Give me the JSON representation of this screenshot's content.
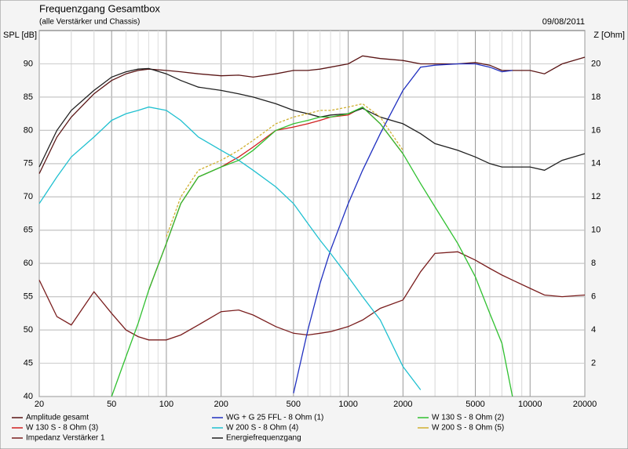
{
  "chart_data": {
    "type": "line",
    "title": "Frequenzgang Gesamtbox",
    "subtitle": "(alle Verstärker und Chassis)",
    "date": "09/08/2011",
    "y_label": "SPL [dB]",
    "y2_label": "Z [Ohm]",
    "log_x": true,
    "grid": true,
    "x": [
      20,
      25,
      30,
      40,
      50,
      60,
      70,
      80,
      100,
      120,
      150,
      200,
      250,
      300,
      400,
      500,
      600,
      700,
      800,
      1000,
      1200,
      1500,
      2000,
      2500,
      3000,
      4000,
      5000,
      6000,
      7000,
      8000,
      10000,
      12000,
      15000,
      20000
    ],
    "xlim": [
      20,
      20000
    ],
    "xticks": [
      20,
      50,
      100,
      200,
      500,
      1000,
      2000,
      5000,
      10000,
      20000
    ],
    "xminor": [
      30,
      40,
      60,
      70,
      80,
      90,
      300,
      400,
      600,
      700,
      800,
      900,
      3000,
      4000,
      6000,
      7000,
      8000,
      9000,
      30,
      40,
      300,
      400,
      3000,
      4000,
      6000,
      7000,
      8000,
      9000
    ],
    "ylim": [
      40,
      95
    ],
    "yticks": [
      40,
      45,
      50,
      55,
      60,
      65,
      70,
      75,
      80,
      85,
      90
    ],
    "y2lim": [
      0,
      22
    ],
    "y2ticks": [
      2,
      4,
      6,
      8,
      10,
      12,
      14,
      16,
      18,
      20
    ],
    "series": [
      {
        "name": "Amplitude gesamt",
        "color": "#5a1515",
        "values": [
          73.5,
          79,
          82,
          85.5,
          87.5,
          88.5,
          89,
          89.2,
          89,
          88.8,
          88.5,
          88.2,
          88.3,
          88,
          88.5,
          89,
          89,
          89.2,
          89.5,
          90,
          91.2,
          90.8,
          90.5,
          90,
          90,
          90,
          90.2,
          89.8,
          89,
          89,
          89,
          88.5,
          90,
          91
        ]
      },
      {
        "name": "W 130 S - 8 Ohm (3)",
        "color": "#d02020",
        "values": [
          null,
          null,
          null,
          null,
          null,
          null,
          null,
          56,
          63,
          69,
          73,
          74.5,
          76,
          77.5,
          80,
          80.5,
          81,
          81.5,
          82,
          82.3,
          83.5,
          81,
          76.5,
          null,
          null,
          null,
          null,
          null,
          null,
          null,
          null,
          null,
          null,
          null
        ]
      },
      {
        "name": "Impedanz Verstärker 1",
        "color": "#7a1e1e",
        "axis": "y2",
        "values": [
          7,
          4.8,
          4.3,
          6.3,
          5,
          4,
          3.6,
          3.4,
          3.4,
          3.7,
          4.3,
          5.1,
          5.2,
          4.9,
          4.2,
          3.8,
          3.7,
          3.8,
          3.9,
          4.2,
          4.6,
          5.3,
          5.8,
          7.5,
          8.6,
          8.7,
          8.2,
          7.7,
          7.3,
          7,
          6.5,
          6.1,
          6,
          6.1
        ]
      },
      {
        "name": "WG + G 25 FFL - 8 Ohm (1)",
        "color": "#2030c0",
        "values": [
          null,
          null,
          null,
          null,
          null,
          null,
          null,
          null,
          null,
          null,
          null,
          null,
          null,
          null,
          null,
          40.5,
          50,
          57,
          62,
          69,
          74,
          79.5,
          86,
          89.5,
          89.8,
          90,
          90,
          89.5,
          88.8,
          89,
          null,
          null,
          null,
          null
        ]
      },
      {
        "name": "W 200 S - 8 Ohm (4)",
        "color": "#20c0d0",
        "values": [
          69,
          73,
          76,
          79,
          81.5,
          82.5,
          83,
          83.5,
          83,
          81.5,
          79,
          77,
          75.5,
          74,
          71.5,
          69,
          66,
          63.5,
          61.5,
          58,
          55,
          51.5,
          44.5,
          41,
          null,
          null,
          null,
          null,
          null,
          null,
          null,
          null,
          null,
          null
        ]
      },
      {
        "name": "Energiefrequenzgang",
        "color": "#202020",
        "values": [
          74.5,
          80,
          83,
          86,
          88,
          88.8,
          89.2,
          89.3,
          88.5,
          87.5,
          86.5,
          86,
          85.5,
          85,
          84,
          83,
          82.5,
          82,
          82.3,
          82.5,
          83.3,
          82,
          81,
          79.5,
          78,
          77,
          76,
          75,
          74.5,
          74.5,
          74.5,
          74,
          75.5,
          76.5
        ]
      },
      {
        "name": "W 130 S - 8 Ohm (2)",
        "color": "#30c030",
        "values": [
          null,
          null,
          null,
          null,
          40,
          46,
          51,
          56,
          63,
          69,
          73,
          74.5,
          75.5,
          77,
          80,
          81,
          81.5,
          82,
          82,
          82.5,
          83.5,
          81,
          76.5,
          72,
          68.5,
          63,
          58,
          52.5,
          48,
          40,
          null,
          null,
          null,
          null
        ]
      },
      {
        "name": "W 200 S - 8 Ohm (5)",
        "color": "#d0b030",
        "dashed": true,
        "values": [
          null,
          null,
          null,
          null,
          null,
          null,
          null,
          null,
          64,
          70,
          74,
          75.5,
          77,
          78.5,
          81,
          82,
          82.5,
          83,
          83,
          83.5,
          84,
          82,
          77,
          null,
          null,
          null,
          null,
          null,
          null,
          null,
          null,
          null,
          null,
          null
        ]
      }
    ]
  }
}
